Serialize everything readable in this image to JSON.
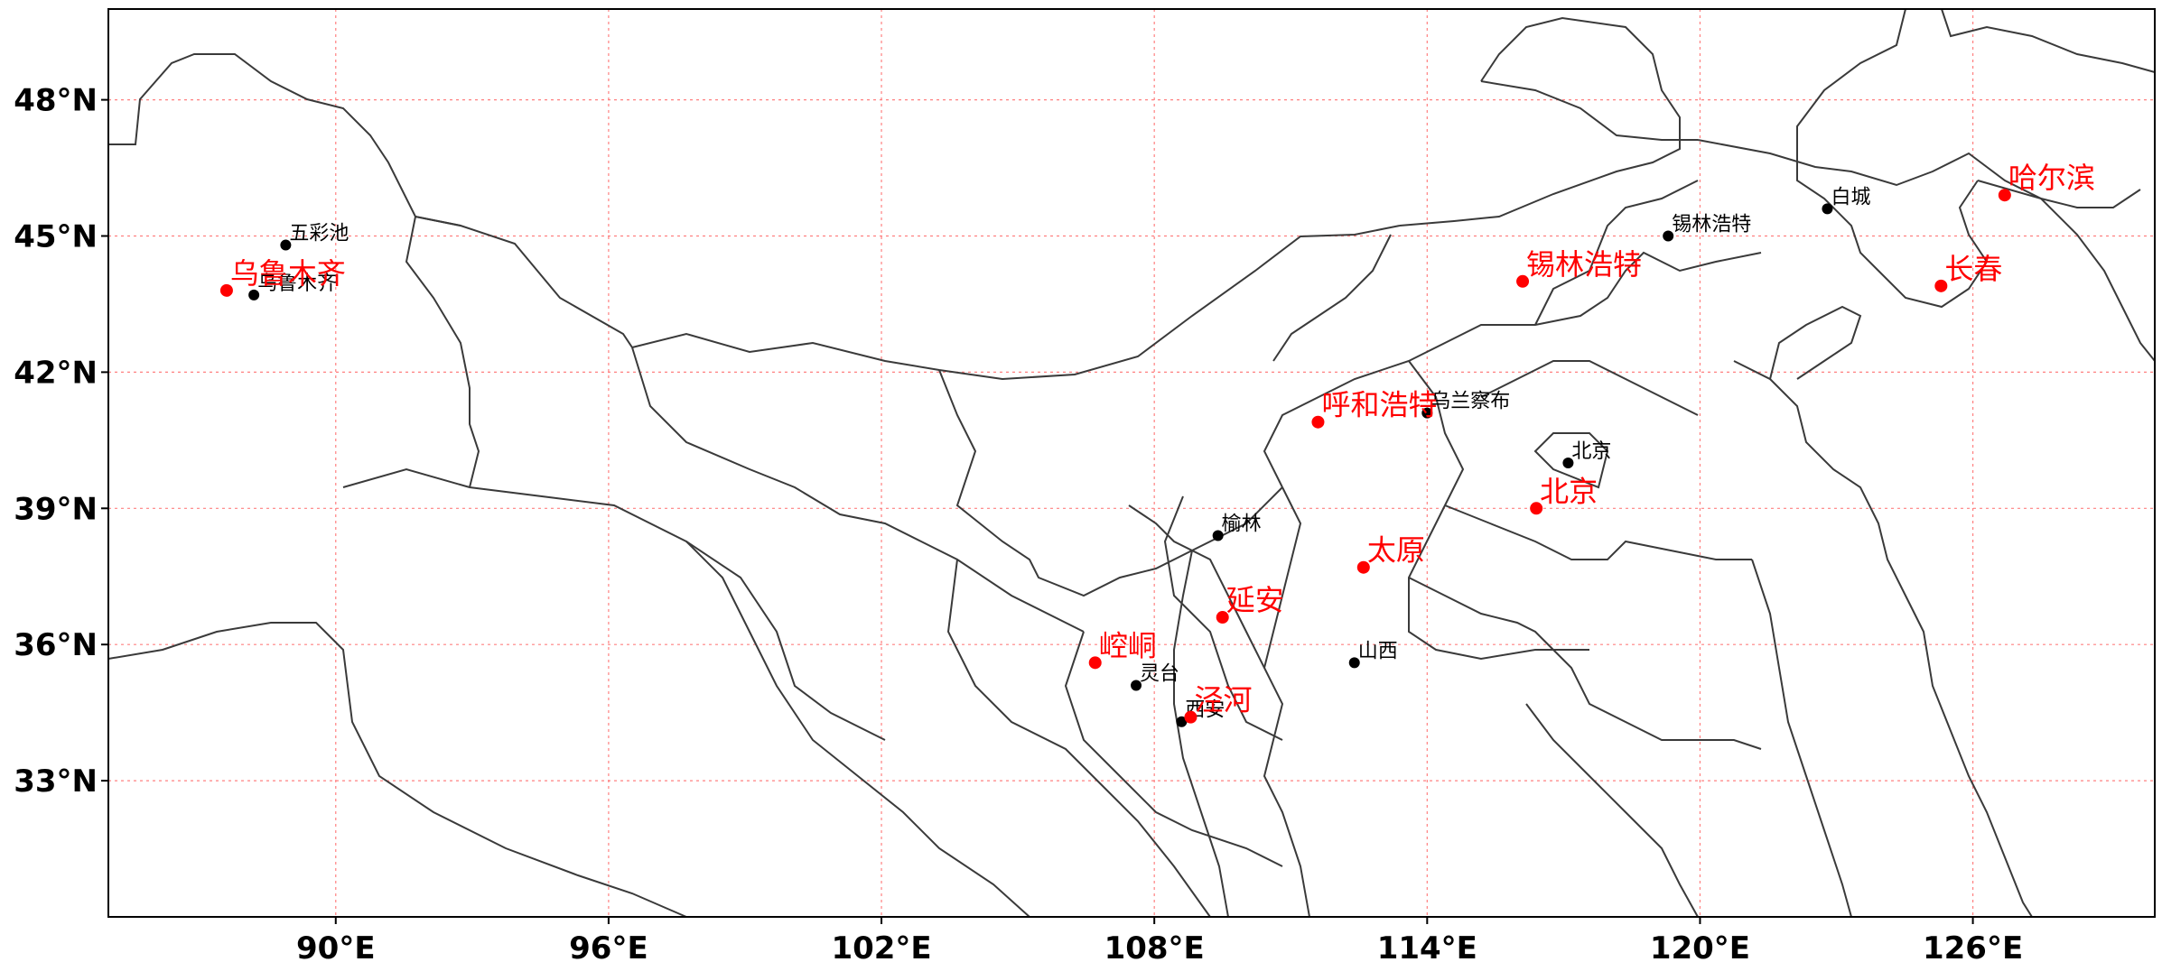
{
  "map": {
    "projection": "PlateCarree",
    "lon_range": [
      85,
      130
    ],
    "lat_range": [
      30,
      50
    ],
    "gridlines": {
      "color": "#ff8080",
      "style": "dotted"
    },
    "lon_ticks": [
      {
        "value": 90,
        "label": "90°E"
      },
      {
        "value": 96,
        "label": "96°E"
      },
      {
        "value": 102,
        "label": "102°E"
      },
      {
        "value": 108,
        "label": "108°E"
      },
      {
        "value": 114,
        "label": "114°E"
      },
      {
        "value": 120,
        "label": "120°E"
      },
      {
        "value": 126,
        "label": "126°E"
      }
    ],
    "lat_ticks": [
      {
        "value": 48,
        "label": "48°N"
      },
      {
        "value": 45,
        "label": "45°N"
      },
      {
        "value": 42,
        "label": "42°N"
      },
      {
        "value": 39,
        "label": "39°N"
      },
      {
        "value": 36,
        "label": "36°N"
      },
      {
        "value": 33,
        "label": "33°N"
      }
    ],
    "black_stations": [
      {
        "name": "五彩池",
        "lon": 88.9,
        "lat": 44.8
      },
      {
        "name": "乌鲁木齐",
        "lon": 88.2,
        "lat": 43.7
      },
      {
        "name": "锡林浩特",
        "lon": 119.3,
        "lat": 45.0
      },
      {
        "name": "白城",
        "lon": 122.8,
        "lat": 45.6
      },
      {
        "name": "乌兰察布",
        "lon": 114.0,
        "lat": 41.1
      },
      {
        "name": "北京",
        "lon": 117.1,
        "lat": 40.0
      },
      {
        "name": "榆林",
        "lon": 109.4,
        "lat": 38.4
      },
      {
        "name": "山西",
        "lon": 112.4,
        "lat": 35.6
      },
      {
        "name": "灵台",
        "lon": 107.6,
        "lat": 35.1
      },
      {
        "name": "西安",
        "lon": 108.6,
        "lat": 34.3
      }
    ],
    "red_stations": [
      {
        "name": "哈尔滨",
        "lon": 126.7,
        "lat": 45.9
      },
      {
        "name": "长春",
        "lon": 125.3,
        "lat": 43.9
      },
      {
        "name": "锡林浩特",
        "lon": 116.1,
        "lat": 44.0
      },
      {
        "name": "乌鲁木齐",
        "lon": 87.6,
        "lat": 43.8
      },
      {
        "name": "呼和浩特",
        "lon": 111.6,
        "lat": 40.9
      },
      {
        "name": "北京",
        "lon": 116.4,
        "lat": 39.0
      },
      {
        "name": "太原",
        "lon": 112.6,
        "lat": 37.7
      },
      {
        "name": "延安",
        "lon": 109.5,
        "lat": 36.6
      },
      {
        "name": "崆峒",
        "lon": 106.7,
        "lat": 35.6
      },
      {
        "name": "泾河",
        "lon": 108.8,
        "lat": 34.4
      }
    ],
    "colors": {
      "black_marker": "#000000",
      "red_marker": "#ff0000",
      "border": "#3a3a3a"
    }
  }
}
